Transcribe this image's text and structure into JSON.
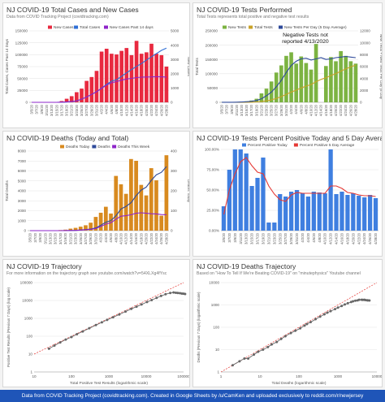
{
  "footer": "Data from COVID Tracking Project (covidtracking.com). Created in Google Sheets by /u/CamKen and uploaded exclusively to reddit.com/r/newjersey",
  "panels": {
    "p1": {
      "title": "NJ COVID-19 Total Cases and New Cases",
      "subtitle": "Data from COVID Tracking Project (covidtracking.com)"
    },
    "p2": {
      "title": "NJ COVID-19 Tests Performed",
      "subtitle": "Total Tests represents total positive and negative test results"
    },
    "p3": {
      "title": "NJ COVID-19 Deaths (Today and Total)",
      "subtitle": ""
    },
    "p4": {
      "title": "NJ COVID-19 Tests Percent Positive Today and 5 Day Average",
      "subtitle": ""
    },
    "p5": {
      "title": "NJ COVID-19 Trajectory",
      "subtitle": "For more information on the trajectory graph see youtube.com/watch?v=54XLXg4fYsc"
    },
    "p6": {
      "title": "NJ COVID-19 Deaths Trajectory",
      "subtitle": "Based on \"How To Tell If We're Beating COVID-19\" on \"minutephysics\" Youtube channel"
    }
  },
  "colors": {
    "bar_red": "#e8293f",
    "line_blue": "#2f6fd6",
    "line_purple": "#8e24c9",
    "bar_green": "#7cb342",
    "line_gold": "#c9a227",
    "bar_orange": "#d88a1f",
    "line_navy": "#2e4a9a",
    "bar_blue": "#3f7fe0",
    "line_red": "#e53935",
    "traj_gray": "#666666",
    "trend_red": "#e53935"
  },
  "chart_data": [
    {
      "id": "cases",
      "type": "bar",
      "title": "NJ COVID-19 Total Cases and New Cases",
      "categories": [
        "3/5/20",
        "3/7/20",
        "3/9/20",
        "3/11/20",
        "3/13/20",
        "3/15/20",
        "3/17/20",
        "3/19/20",
        "3/21/20",
        "3/23/20",
        "3/25/20",
        "3/27/20",
        "3/29/20",
        "3/31/20",
        "4/2/20",
        "4/4/20",
        "4/6/20",
        "4/8/20",
        "4/10/20",
        "4/12/20",
        "4/14/20",
        "4/16/20",
        "4/18/20",
        "4/20/20",
        "4/22/20",
        "4/24/20",
        "4/26/20",
        "4/28/20"
      ],
      "series": [
        {
          "name": "New Cases",
          "axis": "right",
          "kind": "bar",
          "values": [
            1,
            2,
            3,
            8,
            10,
            27,
            90,
            250,
            430,
            710,
            960,
            1500,
            1770,
            2200,
            3550,
            3750,
            3400,
            3350,
            3600,
            3800,
            3300,
            4300,
            3400,
            3500,
            4100,
            3400,
            3300,
            2500
          ]
        },
        {
          "name": "Total Cases",
          "axis": "left",
          "kind": "line",
          "values": [
            2,
            4,
            6,
            15,
            29,
            69,
            267,
            742,
            1914,
            2844,
            6876,
            11124,
            16636,
            22255,
            29895,
            37505,
            44416,
            47437,
            54588,
            61850,
            68824,
            75317,
            81420,
            88806,
            95865,
            102196,
            109038,
            113856
          ]
        },
        {
          "name": "New Cases Past 14 days",
          "axis": "left",
          "kind": "line",
          "values": [
            2,
            4,
            6,
            15,
            29,
            69,
            267,
            742,
            1914,
            2844,
            6876,
            11124,
            16636,
            22150,
            29300,
            36200,
            41000,
            43500,
            46500,
            49000,
            50200,
            52000,
            52800,
            53100,
            53400,
            53800,
            53600,
            53000
          ]
        }
      ],
      "ylim_left": [
        0,
        150000
      ],
      "yticks_left": [
        "0",
        "25000",
        "50000",
        "75000",
        "100000",
        "125000",
        "150000"
      ],
      "ylim_right": [
        0,
        5000
      ],
      "yticks_right": [
        "0",
        "1000",
        "2000",
        "3000",
        "4000",
        "5000"
      ],
      "ylabel": "Total Cases, Cases Past 14 Days",
      "ylabel_right": "New Cases"
    },
    {
      "id": "tests",
      "type": "bar",
      "title": "NJ COVID-19 Tests Performed",
      "categories": [
        "3/5/20",
        "3/7/20",
        "3/9/20",
        "3/11/20",
        "3/13/20",
        "3/15/20",
        "3/17/20",
        "3/19/20",
        "3/21/20",
        "3/23/20",
        "3/25/20",
        "3/27/20",
        "3/29/20",
        "3/31/20",
        "4/2/20",
        "4/4/20",
        "4/6/20",
        "4/8/20",
        "4/10/20",
        "4/12/20",
        "4/14/20",
        "4/16/20",
        "4/18/20",
        "4/20/20",
        "4/22/20",
        "4/24/20",
        "4/26/20",
        "4/28/20"
      ],
      "series": [
        {
          "name": "New Tests",
          "axis": "right",
          "kind": "bar",
          "values": [
            10,
            20,
            30,
            50,
            100,
            180,
            300,
            600,
            1500,
            2300,
            3500,
            5000,
            6200,
            7800,
            8400,
            6500,
            7700,
            6600,
            5500,
            9800,
            0,
            6100,
            7600,
            6900,
            8600,
            7800,
            6900,
            6500
          ]
        },
        {
          "name": "Total Tests",
          "axis": "left",
          "kind": "line",
          "values": [
            20,
            40,
            70,
            120,
            220,
            400,
            700,
            1300,
            2800,
            5100,
            8600,
            13600,
            19800,
            27600,
            36000,
            42500,
            50200,
            56800,
            62300,
            72100,
            80000,
            86100,
            93700,
            100600,
            109200,
            117000,
            123900,
            130400
          ]
        },
        {
          "name": "New Tests Per Day (5 Day Average)",
          "axis": "right",
          "kind": "line",
          "values": [
            10,
            15,
            20,
            30,
            60,
            100,
            180,
            300,
            600,
            1100,
            1700,
            2600,
            3700,
            5000,
            6200,
            6900,
            7300,
            7400,
            7100,
            7300,
            7500,
            7200,
            7300,
            7500,
            7600,
            7700,
            7600,
            7500
          ]
        }
      ],
      "annotation": "Negative Tests not reported 4/13/2020",
      "ylim_left": [
        0,
        250000
      ],
      "yticks_left": [
        "0",
        "50000",
        "100000",
        "150000",
        "200000",
        "250000"
      ],
      "ylim_right": [
        0,
        12000
      ],
      "yticks_right": [
        "0",
        "2000",
        "4000",
        "6000",
        "8000",
        "10000",
        "12000"
      ],
      "ylabel": "Total Tests",
      "ylabel_right": "New Tests + New Tests Per Day (5 Day"
    },
    {
      "id": "deaths",
      "type": "bar",
      "title": "NJ COVID-19 Deaths (Today and Total)",
      "categories": [
        "3/5/20",
        "3/7/20",
        "3/9/20",
        "3/11/20",
        "3/13/20",
        "3/15/20",
        "3/17/20",
        "3/19/20",
        "3/21/20",
        "3/23/20",
        "3/25/20",
        "3/27/20",
        "3/29/20",
        "3/31/20",
        "4/2/20",
        "4/4/20",
        "4/6/20",
        "4/8/20",
        "4/10/20",
        "4/12/20",
        "4/14/20",
        "4/16/20",
        "4/18/20",
        "4/20/20",
        "4/22/20",
        "4/24/20",
        "4/26/20",
        "4/28/20"
      ],
      "series": [
        {
          "name": "Deaths Today",
          "axis": "right",
          "kind": "bar",
          "values": [
            0,
            0,
            0,
            0,
            1,
            2,
            3,
            5,
            10,
            14,
            20,
            27,
            40,
            69,
            90,
            120,
            86,
            275,
            233,
            185,
            360,
            351,
            230,
            177,
            314,
            253,
            75,
            379
          ]
        },
        {
          "name": "Deaths",
          "axis": "left",
          "kind": "line",
          "values": [
            0,
            0,
            0,
            1,
            1,
            2,
            4,
            9,
            20,
            27,
            62,
            108,
            161,
            267,
            537,
            846,
            1003,
            1504,
            2183,
            2443,
            2805,
            3518,
            4070,
            4377,
            5063,
            5617,
            5863,
            6442
          ]
        },
        {
          "name": "Deaths This Week",
          "axis": "left",
          "kind": "line",
          "values": [
            0,
            0,
            0,
            1,
            1,
            2,
            4,
            9,
            19,
            25,
            55,
            90,
            130,
            210,
            420,
            650,
            800,
            1150,
            1450,
            1500,
            1600,
            1750,
            1800,
            1750,
            1700,
            1680,
            1620,
            1600
          ]
        }
      ],
      "ylim_left": [
        0,
        8000
      ],
      "yticks_left": [
        "0",
        "1000",
        "2000",
        "3000",
        "4000",
        "5000",
        "6000",
        "7000",
        "8000"
      ],
      "ylim_right": [
        0,
        400
      ],
      "yticks_right": [
        "0",
        "100",
        "200",
        "300",
        "400"
      ],
      "ylabel": "Total Deaths",
      "ylabel_right": "Deaths Today"
    },
    {
      "id": "percent",
      "type": "bar",
      "title": "NJ COVID-19 Tests Percent Positive Today and 5 Day Average",
      "categories": [
        "3/5/20",
        "3/7/20",
        "3/9/20",
        "3/11/20",
        "3/13/20",
        "3/15/20",
        "3/17/20",
        "3/19/20",
        "3/21/20",
        "3/23/20",
        "3/25/20",
        "3/27/20",
        "3/29/20",
        "3/31/20",
        "4/2/20",
        "4/4/20",
        "4/6/20",
        "4/8/20",
        "4/10/20",
        "4/12/20",
        "4/14/20",
        "4/16/20",
        "4/18/20",
        "4/20/20",
        "4/22/20",
        "4/24/20",
        "4/26/20",
        "4/28/20"
      ],
      "series": [
        {
          "name": "Percent Positive Today",
          "axis": "left",
          "kind": "bar",
          "values": [
            30,
            75,
            100,
            100,
            95,
            55,
            65,
            90,
            10,
            10,
            45,
            42,
            48,
            50,
            46,
            42,
            48,
            47,
            46,
            100,
            45,
            48,
            44,
            46,
            43,
            41,
            44,
            40
          ]
        },
        {
          "name": "Percent Positive 5 Day Average",
          "axis": "left",
          "kind": "line",
          "values": [
            20,
            50,
            70,
            85,
            90,
            80,
            72,
            70,
            55,
            45,
            38,
            36,
            44,
            47,
            46,
            46,
            46,
            46,
            46,
            55,
            55,
            52,
            47,
            46,
            44,
            43,
            43,
            42
          ]
        }
      ],
      "ylim": [
        0,
        100
      ],
      "yticks": [
        "0.00%",
        "25.00%",
        "50.00%",
        "75.00%",
        "100.00%"
      ]
    },
    {
      "id": "trajectory",
      "type": "line",
      "title": "NJ COVID-19 Trajectory",
      "xscale": "log",
      "yscale": "log",
      "xlim": [
        10,
        100000
      ],
      "ylim": [
        1,
        100000
      ],
      "xticks": [
        "10",
        "100",
        "1000",
        "10000",
        "100000"
      ],
      "yticks": [
        "1",
        "10",
        "100",
        "1000",
        "10000",
        "100000"
      ],
      "xlabel": "Total Positive Test Results (logarithmic scale)",
      "ylabel": "Positive Test Results (Previous 7 Days) (log scale)",
      "series": [
        {
          "name": "",
          "x": [
            25,
            35,
            50,
            70,
            100,
            140,
            200,
            300,
            450,
            650,
            900,
            1300,
            1900,
            2800,
            4000,
            5500,
            7500,
            10500,
            14000,
            19000,
            25000,
            33000,
            44000,
            54000,
            62000,
            70000,
            80000,
            90000,
            100000,
            110000
          ],
          "y": [
            20,
            30,
            45,
            65,
            90,
            130,
            185,
            280,
            420,
            600,
            820,
            1150,
            1650,
            2400,
            3400,
            4500,
            6000,
            8200,
            10500,
            14000,
            18000,
            22500,
            26500,
            28000,
            27000,
            26500,
            25500,
            24500,
            24000,
            23000
          ]
        }
      ]
    },
    {
      "id": "deaths_trajectory",
      "type": "line",
      "title": "NJ COVID-19 Deaths Trajectory",
      "xscale": "log",
      "yscale": "log",
      "xlim": [
        1,
        10000
      ],
      "ylim": [
        1,
        10000
      ],
      "xticks": [
        "1",
        "10",
        "100",
        "1000",
        "10000"
      ],
      "yticks": [
        "1",
        "10",
        "100",
        "1000",
        "10000"
      ],
      "xlabel": "Total Deaths (logarithmic scale)",
      "ylabel": "Deaths (Previous 7 Days) (logarithmic scale)",
      "series": [
        {
          "name": "",
          "x": [
            2,
            3,
            4,
            5,
            7,
            9,
            12,
            16,
            20,
            27,
            35,
            45,
            62,
            81,
            108,
            140,
            161,
            200,
            267,
            350,
            450,
            537,
            650,
            846,
            1003,
            1250,
            1504,
            1800,
            2183,
            2443,
            2805,
            3200,
            3518,
            4070,
            4377,
            4800,
            5063,
            5617,
            5863,
            6442
          ],
          "y": [
            2,
            3,
            4,
            4,
            6,
            8,
            10,
            13,
            17,
            22,
            30,
            40,
            55,
            70,
            90,
            120,
            140,
            170,
            230,
            300,
            380,
            450,
            530,
            650,
            760,
            900,
            1050,
            1200,
            1350,
            1450,
            1550,
            1600,
            1700,
            1700,
            1680,
            1700,
            1650,
            1620,
            1600,
            1580
          ]
        }
      ]
    }
  ]
}
